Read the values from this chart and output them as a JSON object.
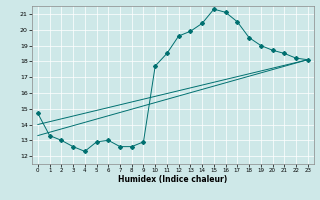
{
  "title": "",
  "xlabel": "Humidex (Indice chaleur)",
  "ylabel": "",
  "xlim": [
    -0.5,
    23.5
  ],
  "ylim": [
    11.5,
    21.5
  ],
  "yticks": [
    12,
    13,
    14,
    15,
    16,
    17,
    18,
    19,
    20,
    21
  ],
  "xticks": [
    0,
    1,
    2,
    3,
    4,
    5,
    6,
    7,
    8,
    9,
    10,
    11,
    12,
    13,
    14,
    15,
    16,
    17,
    18,
    19,
    20,
    21,
    22,
    23
  ],
  "bg_color": "#cee8e8",
  "line_color": "#007070",
  "line1": {
    "x": [
      0,
      1,
      2,
      3,
      4,
      5,
      6,
      7,
      8,
      9,
      10,
      11,
      12,
      13,
      14,
      15,
      16,
      17,
      18,
      19,
      20,
      21,
      22,
      23
    ],
    "y": [
      14.7,
      13.3,
      13.0,
      12.6,
      12.3,
      12.9,
      13.0,
      12.6,
      12.6,
      12.9,
      17.7,
      18.5,
      19.6,
      19.9,
      20.4,
      21.3,
      21.1,
      20.5,
      19.5,
      19.0,
      18.7,
      18.5,
      18.2,
      18.1
    ]
  },
  "line2": {
    "x": [
      0,
      23
    ],
    "y": [
      14.0,
      18.1
    ]
  },
  "line3": {
    "x": [
      0,
      23
    ],
    "y": [
      13.3,
      18.1
    ]
  }
}
